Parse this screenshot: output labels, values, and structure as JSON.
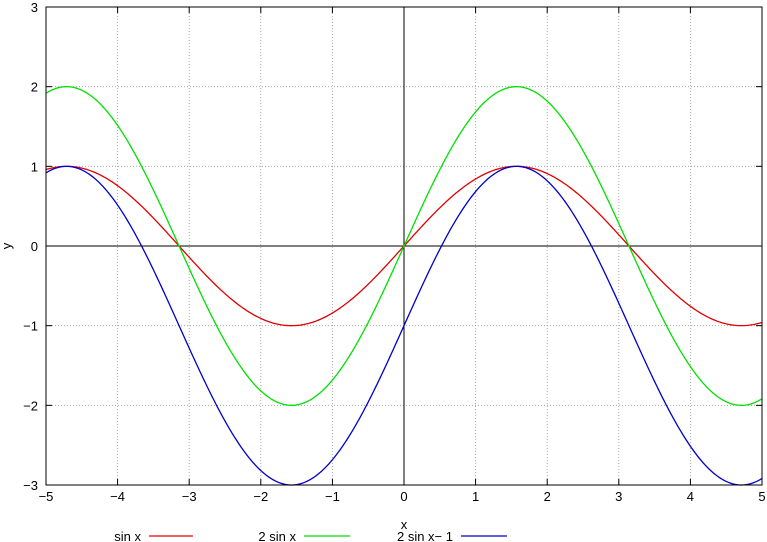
{
  "chart_data": {
    "type": "line",
    "title": "",
    "xlabel": "x",
    "ylabel": "y",
    "xlim": [
      -5,
      5
    ],
    "ylim": [
      -3,
      3
    ],
    "x_ticks": [
      -5,
      -4,
      -3,
      -2,
      -1,
      0,
      1,
      2,
      3,
      4,
      5
    ],
    "y_ticks": [
      -3,
      -2,
      -1,
      0,
      1,
      2,
      3
    ],
    "x_tick_labels": [
      "−5",
      "−4",
      "−3",
      "−2",
      "−1",
      "0",
      "1",
      "2",
      "3",
      "4",
      "5"
    ],
    "y_tick_labels": [
      "−3",
      "−2",
      "−1",
      "0",
      "1",
      "2",
      "3"
    ],
    "grid": true,
    "legend_position": "bottom",
    "series": [
      {
        "name": "sin x",
        "color": "#e00000",
        "amplitude": 1,
        "offset": 0
      },
      {
        "name": "2 sin x",
        "color": "#00e000",
        "amplitude": 2,
        "offset": 0
      },
      {
        "name": "2 sin x− 1",
        "color": "#0000cc",
        "amplitude": 2,
        "offset": -1
      }
    ]
  }
}
